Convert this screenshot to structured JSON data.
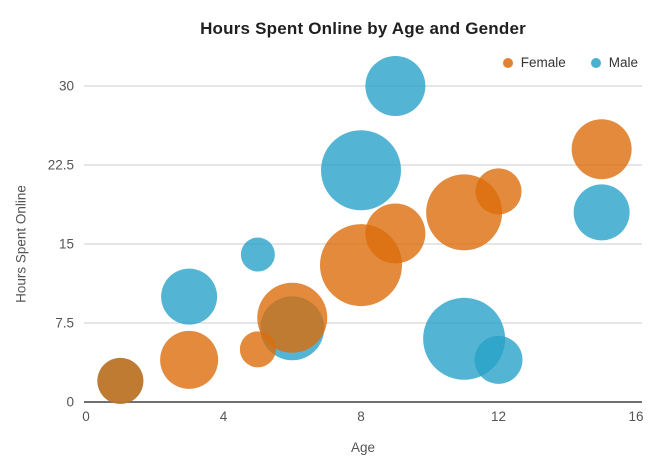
{
  "chart_data": {
    "type": "bubble",
    "title": "Hours Spent Online by Age and Gender",
    "xlabel": "Age",
    "ylabel": "Hours Spent Online",
    "xlim": [
      0,
      16
    ],
    "ylim": [
      0,
      30
    ],
    "x_ticks": [
      0,
      4,
      8,
      12,
      16
    ],
    "y_ticks": [
      0,
      7.5,
      15,
      22.5,
      30
    ],
    "grid": true,
    "legend_position": "top-right",
    "series": [
      {
        "name": "Female",
        "color": "#DC6D0B",
        "fill_opacity": 0.8,
        "points": [
          {
            "x": 1,
            "y": 2,
            "r": 23
          },
          {
            "x": 3,
            "y": 4,
            "r": 29
          },
          {
            "x": 5,
            "y": 5,
            "r": 18
          },
          {
            "x": 6,
            "y": 8,
            "r": 35
          },
          {
            "x": 8,
            "y": 13,
            "r": 41
          },
          {
            "x": 9,
            "y": 16,
            "r": 30
          },
          {
            "x": 11,
            "y": 18,
            "r": 38
          },
          {
            "x": 12,
            "y": 20,
            "r": 23
          },
          {
            "x": 15,
            "y": 24,
            "r": 30
          }
        ]
      },
      {
        "name": "Male",
        "color": "#28A3C8",
        "fill_opacity": 0.8,
        "points": [
          {
            "x": 1,
            "y": 2,
            "r": 23
          },
          {
            "x": 3,
            "y": 10,
            "r": 28
          },
          {
            "x": 5,
            "y": 14,
            "r": 17
          },
          {
            "x": 6,
            "y": 7,
            "r": 32
          },
          {
            "x": 8,
            "y": 22,
            "r": 40
          },
          {
            "x": 9,
            "y": 30,
            "r": 30
          },
          {
            "x": 11,
            "y": 6,
            "r": 41
          },
          {
            "x": 12,
            "y": 4,
            "r": 24
          },
          {
            "x": 15,
            "y": 18,
            "r": 28
          }
        ]
      }
    ],
    "colors": {
      "gridline": "#cccccc",
      "axis_line": "#6f6f6f",
      "tick_text": "#555555",
      "title_text": "#1f1f1f",
      "legend_text": "#333333",
      "background": "#ffffff"
    }
  }
}
